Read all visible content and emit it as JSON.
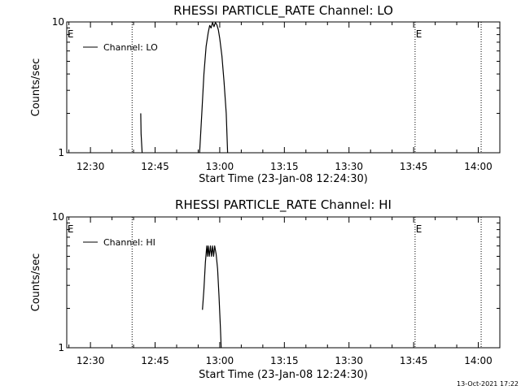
{
  "footer": {
    "timestamp": "13-Oct-2021 17:22"
  },
  "chart_data": [
    {
      "type": "line",
      "title": "RHESSI PARTICLE_RATE Channel: LO",
      "xlabel": "Start Time (23-Jan-08 12:24:30)",
      "ylabel": "Counts/sec",
      "y_scale": "log",
      "xlim": [
        "12:24:30",
        "14:05:00"
      ],
      "ylim": [
        1,
        10
      ],
      "x_ticks": [
        "12:30",
        "12:45",
        "13:00",
        "13:15",
        "13:30",
        "13:45",
        "14:00"
      ],
      "y_ticks": [
        "1",
        "10"
      ],
      "legend": {
        "position": "top-left",
        "label": "Channel: LO"
      },
      "event_lines": [
        {
          "time": "12:39:40",
          "label": "E"
        },
        {
          "time": "13:45:20",
          "label": ""
        },
        {
          "time": "14:00:40",
          "label": ""
        }
      ],
      "event_markers": [
        {
          "time": "12:24:40",
          "label": "E"
        },
        {
          "time": "13:45:30",
          "label": "E"
        }
      ],
      "series": [
        {
          "name": "Channel: LO",
          "segments": [
            [
              {
                "t": "12:41:40",
                "y": 2.0
              },
              {
                "t": "12:41:45",
                "y": 1.4
              },
              {
                "t": "12:42:00",
                "y": 1.0
              }
            ],
            [
              {
                "t": "12:55:20",
                "y": 1.0
              },
              {
                "t": "12:55:50",
                "y": 2.0
              },
              {
                "t": "12:56:20",
                "y": 4.0
              },
              {
                "t": "12:56:50",
                "y": 6.5
              },
              {
                "t": "12:57:20",
                "y": 8.3
              },
              {
                "t": "12:57:40",
                "y": 9.4
              },
              {
                "t": "12:58:00",
                "y": 9.0
              },
              {
                "t": "12:58:20",
                "y": 9.9
              },
              {
                "t": "12:58:40",
                "y": 9.2
              },
              {
                "t": "12:59:00",
                "y": 9.9
              },
              {
                "t": "12:59:20",
                "y": 9.5
              },
              {
                "t": "12:59:40",
                "y": 8.7
              },
              {
                "t": "13:00:00",
                "y": 7.5
              },
              {
                "t": "13:00:30",
                "y": 5.5
              },
              {
                "t": "13:01:00",
                "y": 3.5
              },
              {
                "t": "13:01:30",
                "y": 2.0
              },
              {
                "t": "13:01:50",
                "y": 1.0
              }
            ]
          ]
        }
      ]
    },
    {
      "type": "line",
      "title": "RHESSI PARTICLE_RATE Channel: HI",
      "xlabel": "Start Time (23-Jan-08 12:24:30)",
      "ylabel": "Counts/sec",
      "y_scale": "log",
      "xlim": [
        "12:24:30",
        "14:05:00"
      ],
      "ylim": [
        1,
        10
      ],
      "x_ticks": [
        "12:30",
        "12:45",
        "13:00",
        "13:15",
        "13:30",
        "13:45",
        "14:00"
      ],
      "y_ticks": [
        "1",
        "10"
      ],
      "legend": {
        "position": "top-left",
        "label": "Channel: HI"
      },
      "event_lines": [
        {
          "time": "12:39:40",
          "label": ""
        },
        {
          "time": "13:45:20",
          "label": ""
        },
        {
          "time": "14:00:40",
          "label": ""
        }
      ],
      "event_markers": [
        {
          "time": "12:24:40",
          "label": "E"
        },
        {
          "time": "13:45:30",
          "label": "E"
        }
      ],
      "series": [
        {
          "name": "Channel: HI",
          "segments": [
            [
              {
                "t": "12:56:00",
                "y": 1.95
              },
              {
                "t": "12:56:20",
                "y": 2.8
              },
              {
                "t": "12:56:40",
                "y": 4.5
              },
              {
                "t": "12:57:00",
                "y": 6.0
              },
              {
                "t": "12:57:10",
                "y": 5.0
              },
              {
                "t": "12:57:20",
                "y": 6.0
              },
              {
                "t": "12:57:35",
                "y": 5.0
              },
              {
                "t": "12:57:50",
                "y": 6.0
              },
              {
                "t": "12:58:05",
                "y": 5.0
              },
              {
                "t": "12:58:20",
                "y": 6.0
              },
              {
                "t": "12:58:35",
                "y": 5.0
              },
              {
                "t": "12:58:50",
                "y": 6.0
              },
              {
                "t": "12:59:10",
                "y": 5.2
              },
              {
                "t": "12:59:30",
                "y": 4.0
              },
              {
                "t": "12:59:50",
                "y": 2.5
              },
              {
                "t": "13:00:10",
                "y": 1.4
              },
              {
                "t": "13:00:20",
                "y": 1.0
              }
            ]
          ]
        }
      ]
    }
  ]
}
